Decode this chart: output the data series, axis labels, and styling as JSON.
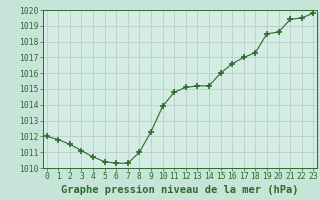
{
  "x": [
    0,
    1,
    2,
    3,
    4,
    5,
    6,
    7,
    8,
    9,
    10,
    11,
    12,
    13,
    14,
    15,
    16,
    17,
    18,
    19,
    20,
    21,
    22,
    23
  ],
  "y": [
    1012.0,
    1011.8,
    1011.5,
    1011.1,
    1010.7,
    1010.4,
    1010.3,
    1010.3,
    1011.0,
    1012.3,
    1013.9,
    1014.8,
    1015.1,
    1015.2,
    1015.2,
    1016.0,
    1016.6,
    1017.0,
    1017.3,
    1018.5,
    1018.6,
    1019.4,
    1019.5,
    1019.8
  ],
  "ylim": [
    1010,
    1020
  ],
  "xlim": [
    -0.3,
    23.3
  ],
  "yticks": [
    1010,
    1011,
    1012,
    1013,
    1014,
    1015,
    1016,
    1017,
    1018,
    1019,
    1020
  ],
  "xticks": [
    0,
    1,
    2,
    3,
    4,
    5,
    6,
    7,
    8,
    9,
    10,
    11,
    12,
    13,
    14,
    15,
    16,
    17,
    18,
    19,
    20,
    21,
    22,
    23
  ],
  "line_color": "#2d6a2d",
  "marker_color": "#2d6a2d",
  "bg_plot": "#d4ede4",
  "bg_fig": "#c6e5d8",
  "grid_color": "#b8c8c0",
  "xlabel": "Graphe pression niveau de la mer (hPa)",
  "xlabel_color": "#2d6a2d",
  "tick_color": "#2d6a2d",
  "tick_fontsize": 5.8,
  "xlabel_fontsize": 7.5
}
